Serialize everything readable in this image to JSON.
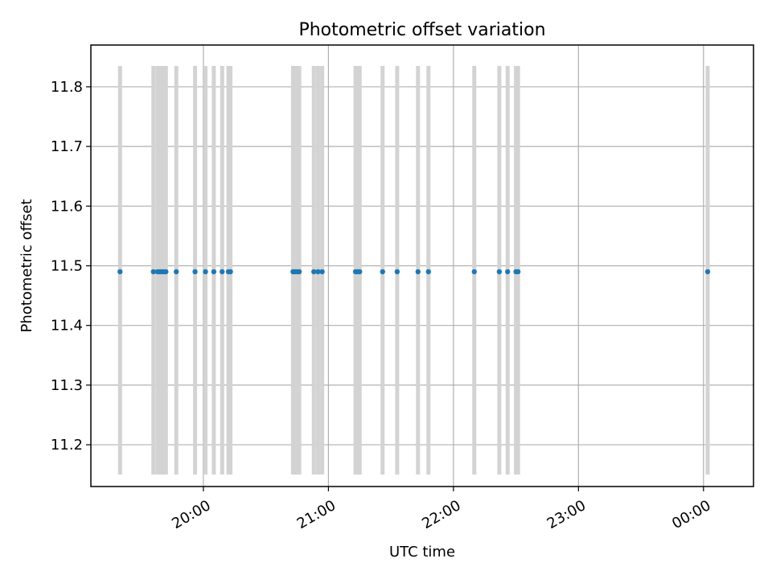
{
  "chart_data": {
    "type": "scatter",
    "title": "Photometric offset variation",
    "xlabel": "UTC time",
    "ylabel": "Photometric offset",
    "ylim": [
      11.13,
      11.87
    ],
    "xlim": [
      "19:06",
      "00:24"
    ],
    "x_ticks": [
      "20:00",
      "21:00",
      "22:00",
      "23:00",
      "00:00"
    ],
    "y_ticks": [
      "11.2",
      "11.3",
      "11.4",
      "11.5",
      "11.6",
      "11.7",
      "11.8"
    ],
    "grid": true,
    "point_color": "#1f77b4",
    "errorbar_color": "#d3d3d3",
    "errorbar_range": [
      11.15,
      11.835
    ],
    "series": [
      {
        "x": [
          "19:20",
          "19:36",
          "19:38",
          "19:39",
          "19:40",
          "19:41",
          "19:42",
          "19:47",
          "19:56",
          "20:01",
          "20:05",
          "20:09",
          "20:12",
          "20:13",
          "20:43",
          "20:44",
          "20:45",
          "20:46",
          "20:53",
          "20:55",
          "20:57",
          "21:13",
          "21:14",
          "21:15",
          "21:26",
          "21:33",
          "21:43",
          "21:48",
          "22:10",
          "22:22",
          "22:26",
          "22:30",
          "22:31",
          "00:02"
        ],
        "y": [
          11.49,
          11.49,
          11.49,
          11.49,
          11.49,
          11.49,
          11.49,
          11.49,
          11.49,
          11.49,
          11.49,
          11.49,
          11.49,
          11.49,
          11.49,
          11.49,
          11.49,
          11.49,
          11.49,
          11.49,
          11.49,
          11.49,
          11.49,
          11.49,
          11.49,
          11.49,
          11.49,
          11.49,
          11.49,
          11.49,
          11.49,
          11.49,
          11.49,
          11.49
        ]
      }
    ]
  }
}
